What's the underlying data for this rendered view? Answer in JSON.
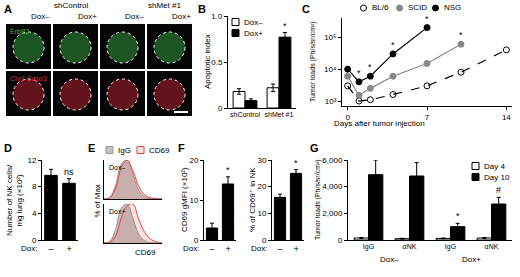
{
  "chart_data": [
    {
      "panel": "A",
      "type": "image",
      "groups": [
        "shControl",
        "shMet #1"
      ],
      "columns": [
        "Dox–",
        "Dox+",
        "Dox–",
        "Dox+"
      ],
      "rows": [
        {
          "name": "ErbB2",
          "color": "#39b54a"
        },
        {
          "name": "Clvd-Casp3",
          "color": "#d7263d"
        }
      ]
    },
    {
      "panel": "B",
      "type": "bar",
      "y_label": "Apoptotic index",
      "categories": [
        "shControl",
        "shMet #1"
      ],
      "series": [
        {
          "name": "Dox–",
          "color": "#ffffff",
          "values": [
            0.18,
            0.22
          ],
          "errors": [
            0.03,
            0.04
          ]
        },
        {
          "name": "Dox+",
          "color": "#000000",
          "values": [
            0.08,
            0.77
          ],
          "errors": [
            0.02,
            0.05
          ]
        }
      ],
      "ylim": [
        0,
        1
      ],
      "yticks": [
        0,
        0.5,
        {
          "value": 1,
          "label": "1.0"
        }
      ],
      "legend": "upper left",
      "annotations": [
        {
          "category_index": 1,
          "series": "Dox+",
          "text": "*"
        }
      ]
    },
    {
      "panel": "C",
      "type": "line",
      "log": "y",
      "x_label": "Days after tumor injection",
      "y_label": "Tumor loads (Ph/s/sr/cm²)",
      "x": [
        0,
        1,
        2,
        4,
        7,
        10,
        14
      ],
      "series": [
        {
          "name": "BL/6",
          "color": "#000000",
          "marker": "open_circle",
          "line_style": "dashed",
          "values": [
            3000,
            1000,
            1100,
            1600,
            3000,
            8000,
            40000
          ]
        },
        {
          "name": "SCID",
          "color": "#888888",
          "marker": "circle",
          "line_style": "solid",
          "values": [
            6000,
            1500,
            2500,
            6000,
            15000,
            60000,
            null
          ]
        },
        {
          "name": "NSG",
          "color": "#000000",
          "marker": "circle",
          "line_style": "solid",
          "values": [
            10000,
            4000,
            6000,
            30000,
            200000,
            null,
            null
          ]
        }
      ],
      "xlim": [
        -0.5,
        14.5
      ],
      "xticks": [
        0,
        7,
        14
      ],
      "ylim": [
        700,
        400000
      ],
      "yticks": [
        {
          "value": 1000,
          "label": "10³"
        },
        {
          "value": 10000,
          "label": "10⁴"
        },
        {
          "value": 100000,
          "label": "10⁵"
        }
      ],
      "legend": "top",
      "annotations": [
        {
          "series": "NSG",
          "x": 1,
          "text": "*"
        },
        {
          "series": "NSG",
          "x": 2,
          "text": "*"
        },
        {
          "series": "NSG",
          "x": 4,
          "text": "*"
        },
        {
          "series": "NSG",
          "x": 7,
          "text": "*"
        },
        {
          "series": "SCID",
          "x": 10,
          "text": "*"
        }
      ]
    },
    {
      "panel": "D",
      "type": "bar",
      "y_label": "Number of NK cells/\nmg lung (×10²)",
      "x_label": "Dox:",
      "categories": [
        "–",
        "+"
      ],
      "color": "#000000",
      "values": [
        9.7,
        8.5
      ],
      "errors": [
        0.9,
        0.7
      ],
      "ylim": [
        0,
        12
      ],
      "yticks": [
        0,
        4,
        8,
        12
      ],
      "annotations": [
        {
          "category_index": 1,
          "text": "ns"
        }
      ]
    },
    {
      "panel": "E",
      "type": "area",
      "y_label": "% of Max",
      "x_label": "CD69",
      "tick_labels": false,
      "x": [
        0,
        1,
        2,
        3,
        4,
        5,
        6,
        7,
        8,
        9,
        10
      ],
      "xlim": [
        0,
        10
      ],
      "ylim": [
        0,
        100
      ],
      "legend": "top",
      "subpanels": [
        {
          "label": "Dox–",
          "series": [
            {
              "name": "IgG",
              "color": "#999999",
              "values": [
                0,
                4,
                35,
                90,
                100,
                62,
                22,
                6,
                1,
                0,
                0
              ]
            },
            {
              "name": "CD69",
              "color": "#e8413c",
              "values": [
                0,
                3,
                28,
                82,
                100,
                72,
                32,
                11,
                3,
                1,
                0
              ]
            }
          ]
        },
        {
          "label": "Dox+",
          "series": [
            {
              "name": "IgG",
              "color": "#999999",
              "values": [
                0,
                4,
                35,
                90,
                100,
                62,
                22,
                6,
                1,
                0,
                0
              ]
            },
            {
              "name": "CD69",
              "color": "#e8413c",
              "values": [
                0,
                2,
                18,
                65,
                96,
                100,
                60,
                28,
                10,
                3,
                0
              ]
            }
          ]
        }
      ]
    },
    {
      "panel": "F",
      "type": "bar",
      "y_label": "CD69 gMFI (×10²)",
      "x_label": "Dox:",
      "categories": [
        "–",
        "+"
      ],
      "color": "#000000",
      "values": [
        3,
        14
      ],
      "errors": [
        1.2,
        1.8
      ],
      "ylim": [
        0,
        20
      ],
      "yticks": [
        0,
        10,
        20
      ],
      "annotations": [
        {
          "category_index": 1,
          "text": "*"
        }
      ]
    },
    {
      "type": "bar",
      "y_label": "% of CD69⁺ in NK",
      "x_label": "Dox:",
      "categories": [
        "–",
        "+"
      ],
      "color": "#000000",
      "values": [
        16,
        25
      ],
      "errors": [
        1.2,
        1.4
      ],
      "ylim": [
        0,
        30
      ],
      "yticks": [
        0,
        10,
        20,
        30
      ],
      "annotations": [
        {
          "category_index": 1,
          "text": "*"
        }
      ]
    },
    {
      "panel": "G",
      "type": "bar",
      "y_label": "Tumor loads (Ph/s/sr/cm²)",
      "categories": [
        "IgG",
        "αNK",
        "IgG",
        "αNK"
      ],
      "groups": [
        "Dox–",
        "Dox–",
        "Dox+",
        "Dox+"
      ],
      "series": [
        {
          "name": "Day 4",
          "color": "#ffffff",
          "values": [
            150,
            100,
            120,
            150
          ],
          "errors": [
            40,
            30,
            30,
            40
          ]
        },
        {
          "name": "Day 10",
          "color": "#000000",
          "values": [
            4900,
            4800,
            1000,
            2700
          ],
          "errors": [
            1100,
            1000,
            250,
            500
          ]
        }
      ],
      "ylim": [
        0,
        6000
      ],
      "yticks": [
        0,
        {
          "value": 2000,
          "label": "2,000"
        },
        {
          "value": 4000,
          "label": "4,000"
        },
        {
          "value": 6000,
          "label": "6,000"
        }
      ],
      "legend": "upper right",
      "annotations": [
        {
          "category_index": 2,
          "series": "Day 10",
          "text": "*"
        },
        {
          "category_index": 3,
          "series": "Day 10",
          "text": "#"
        }
      ]
    }
  ]
}
